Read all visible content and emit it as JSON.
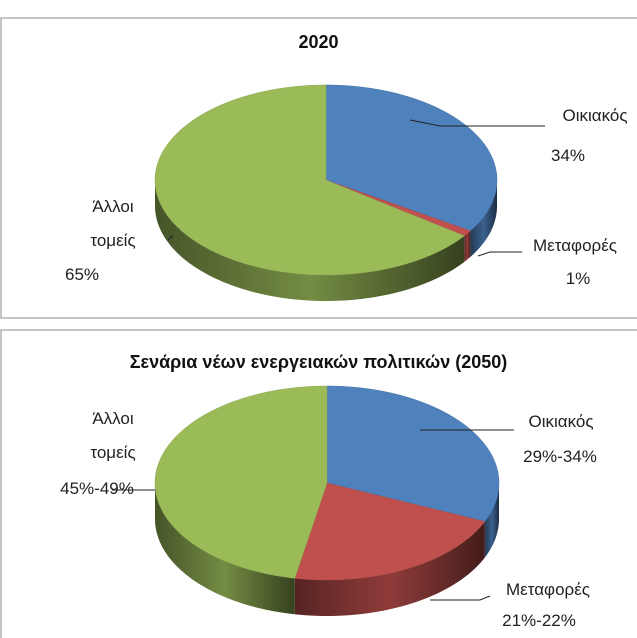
{
  "chart_data": [
    {
      "type": "pie",
      "title": "2020",
      "categories": [
        "Οικιακός",
        "Μεταφορές",
        "Άλλοι τομείς"
      ],
      "values": [
        34,
        1,
        65
      ],
      "value_labels": [
        "34%",
        "1%",
        "65%"
      ],
      "colors": [
        "#4f81bd",
        "#c0504d",
        "#9bbb59"
      ]
    },
    {
      "type": "pie",
      "title": "Σενάρια νέων ενεργειακών πολιτικών (2050)",
      "categories": [
        "Οικιακός",
        "Μεταφορές",
        "Άλλοι τομείς"
      ],
      "values": [
        [
          29,
          34
        ],
        [
          21,
          22
        ],
        [
          45,
          49
        ]
      ],
      "value_labels": [
        "29%-34%",
        "21%-22%",
        "45%-49%"
      ],
      "colors": [
        "#4f81bd",
        "#c0504d",
        "#9bbb59"
      ]
    }
  ]
}
